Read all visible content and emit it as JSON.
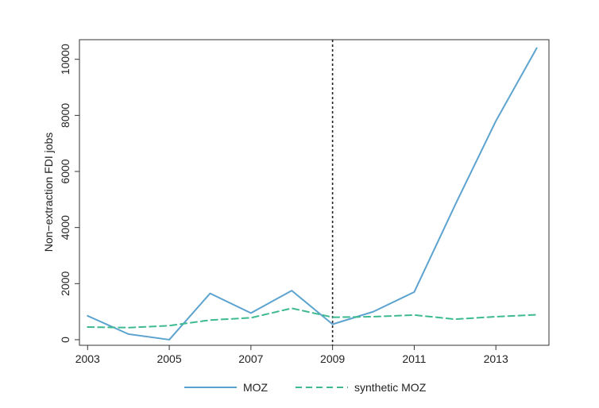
{
  "chart_data": {
    "type": "line",
    "title": "",
    "xlabel": "",
    "ylabel": "Non−extraction FDI jobs",
    "xlim": [
      2002.8,
      2014.3
    ],
    "ylim": [
      -200,
      10700
    ],
    "x_ticks": [
      2003,
      2005,
      2007,
      2009,
      2011,
      2013
    ],
    "y_ticks": [
      0,
      2000,
      4000,
      6000,
      8000,
      10000
    ],
    "grid": false,
    "legend_position": "bottom",
    "reference_line": {
      "x": 2009,
      "style": "dotted",
      "color": "#222222"
    },
    "x": [
      2003,
      2004,
      2005,
      2006,
      2007,
      2008,
      2009,
      2010,
      2011,
      2012,
      2013,
      2014
    ],
    "series": [
      {
        "name": "MOZ",
        "color": "#5da3cf",
        "dash": "solid",
        "values": [
          850,
          200,
          0,
          1650,
          950,
          1750,
          550,
          1000,
          1700,
          4800,
          7800,
          10400
        ]
      },
      {
        "name": "synthetic MOZ",
        "color": "#3dba8f",
        "dash": "dashed",
        "values": [
          450,
          430,
          500,
          700,
          780,
          1120,
          800,
          820,
          880,
          730,
          820,
          890
        ]
      }
    ]
  }
}
